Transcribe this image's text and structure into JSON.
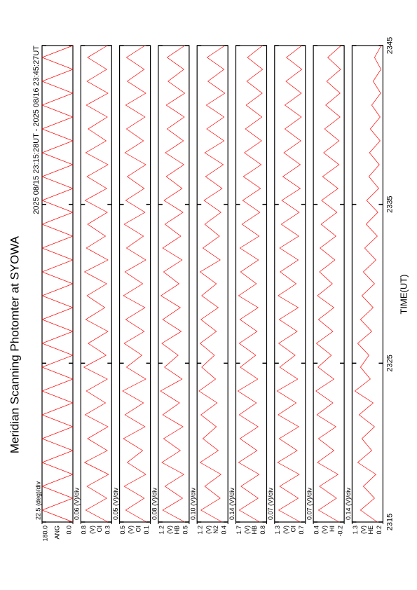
{
  "chart_data": {
    "type": "line",
    "title": "Meridian Scanning Photomter at SYOWA",
    "subtitle": "2025 08/15 23:15:28UT - 2025 08/16 23:45:27UT",
    "xlabel": "TIME(UT)",
    "xlim": [
      2315,
      2345
    ],
    "xticks": [
      2315,
      2325,
      2335,
      2345
    ],
    "x": [
      2315,
      2315.75,
      2316.5,
      2317.25,
      2318,
      2318.75,
      2319.5,
      2320.25,
      2321,
      2321.75,
      2322.5,
      2323.25,
      2324,
      2324.75,
      2325.5,
      2326.25,
      2327,
      2327.75,
      2328.5,
      2329.25,
      2330,
      2330.75,
      2331.5,
      2332.25,
      2333,
      2333.75,
      2334.5,
      2335.25,
      2336,
      2336.75,
      2337.5,
      2338.25,
      2339,
      2339.75,
      2340.5,
      2341.25,
      2342,
      2342.75,
      2343.5,
      2344.25,
      2345
    ],
    "panels": [
      {
        "scale_label": "22.5 (deg)/div",
        "channel": "ANG",
        "color": "#ff0000",
        "ylim": [
          0,
          180
        ],
        "yticks": [
          {
            "value": 180,
            "label": "180.0"
          },
          {
            "value": 0,
            "label": "0.0"
          }
        ],
        "values": [
          0,
          180,
          0,
          180,
          0,
          180,
          0,
          180,
          0,
          180,
          0,
          180,
          0,
          180,
          0,
          180,
          0,
          180,
          0,
          180,
          0,
          180,
          0,
          180,
          0,
          180,
          0,
          180,
          0,
          180,
          0,
          180,
          0,
          180,
          0,
          180,
          0,
          180,
          0,
          180,
          0
        ]
      },
      {
        "scale_label": "0.06 (V)/div",
        "unit": "(V)",
        "channel": "OI",
        "color": "#ff0000",
        "ylim": [
          0.3,
          0.8
        ],
        "yticks": [
          0.8,
          0.3
        ],
        "values": [
          0.36,
          0.72,
          0.38,
          0.7,
          0.35,
          0.74,
          0.37,
          0.69,
          0.36,
          0.73,
          0.4,
          0.71,
          0.37,
          0.75,
          0.39,
          0.68,
          0.36,
          0.72,
          0.41,
          0.7,
          0.38,
          0.74,
          0.36,
          0.71,
          0.4,
          0.69,
          0.37,
          0.73,
          0.38,
          0.7,
          0.36,
          0.72,
          0.39,
          0.68,
          0.37,
          0.71,
          0.36,
          0.7,
          0.38,
          0.69,
          0.37
        ]
      },
      {
        "scale_label": "0.05 (V)/div",
        "unit": "(V)",
        "channel": "OI",
        "color": "#ff0000",
        "ylim": [
          0.1,
          0.5
        ],
        "yticks": [
          0.5,
          0.1
        ],
        "values": [
          0.15,
          0.42,
          0.18,
          0.44,
          0.16,
          0.4,
          0.2,
          0.45,
          0.17,
          0.43,
          0.19,
          0.46,
          0.16,
          0.41,
          0.21,
          0.44,
          0.18,
          0.42,
          0.17,
          0.45,
          0.2,
          0.43,
          0.16,
          0.41,
          0.19,
          0.44,
          0.17,
          0.42,
          0.18,
          0.4,
          0.16,
          0.43,
          0.19,
          0.41,
          0.17,
          0.42,
          0.16,
          0.4,
          0.18,
          0.41,
          0.17
        ]
      },
      {
        "scale_label": "0.08 (V)/div",
        "unit": "(V)",
        "channel": "HB",
        "color": "#ff0000",
        "ylim": [
          0.5,
          1.2
        ],
        "yticks": [
          1.2,
          0.5
        ],
        "values": [
          0.6,
          1.1,
          0.65,
          1.05,
          0.62,
          1.12,
          0.7,
          1.08,
          0.64,
          1.1,
          0.72,
          1.15,
          0.66,
          1.06,
          0.75,
          1.12,
          0.68,
          1.1,
          0.7,
          1.14,
          0.73,
          1.08,
          0.66,
          1.1,
          0.69,
          1.05,
          0.64,
          1.07,
          0.66,
          1.02,
          0.62,
          1.04,
          0.63,
          1.0,
          0.61,
          1.02,
          0.6,
          0.98,
          0.62,
          1.0,
          0.6
        ]
      },
      {
        "scale_label": "0.10 (V)/div",
        "unit": "(V)",
        "channel": "N2",
        "color": "#ff0000",
        "ylim": [
          0.4,
          1.2
        ],
        "yticks": [
          1.2,
          0.4
        ],
        "values": [
          0.55,
          1.1,
          0.6,
          1.0,
          0.58,
          1.12,
          0.65,
          1.05,
          0.7,
          1.1,
          0.68,
          1.15,
          0.72,
          1.08,
          0.75,
          1.12,
          0.7,
          1.1,
          0.65,
          1.08,
          0.7,
          1.12,
          0.6,
          1.05,
          0.62,
          1.0,
          0.58,
          1.02,
          0.55,
          0.98,
          0.52,
          1.0,
          0.5,
          0.95,
          0.5,
          0.96,
          0.48,
          0.92,
          0.5,
          0.94,
          0.48
        ]
      },
      {
        "scale_label": "0.14 (V)/div",
        "unit": "(V)",
        "channel": "HB",
        "color": "#ff0000",
        "ylim": [
          0.8,
          1.7
        ],
        "yticks": [
          1.7,
          0.8
        ],
        "values": [
          1.0,
          1.6,
          1.05,
          1.55,
          1.02,
          1.62,
          1.08,
          1.58,
          1.05,
          1.6,
          1.1,
          1.64,
          1.06,
          1.57,
          1.12,
          1.6,
          1.08,
          1.58,
          1.05,
          1.62,
          1.1,
          1.56,
          1.04,
          1.58,
          1.02,
          1.52,
          1.0,
          1.5,
          0.98,
          1.48,
          0.96,
          1.45,
          0.95,
          1.42,
          0.94,
          1.4,
          0.93,
          1.38,
          0.92,
          1.36,
          0.92
        ]
      },
      {
        "scale_label": "0.07 (V)/div",
        "unit": "(V)",
        "channel": "OI",
        "color": "#ff0000",
        "ylim": [
          0.7,
          1.3
        ],
        "yticks": [
          1.3,
          0.7
        ],
        "values": [
          0.8,
          1.22,
          0.84,
          1.2,
          0.82,
          1.24,
          0.86,
          1.21,
          0.83,
          1.23,
          0.88,
          1.25,
          0.85,
          1.2,
          0.9,
          1.22,
          0.86,
          1.21,
          0.84,
          1.23,
          0.88,
          1.19,
          0.84,
          1.2,
          0.83,
          1.17,
          0.82,
          1.16,
          0.8,
          1.14,
          0.8,
          1.12,
          0.79,
          1.1,
          0.78,
          1.1,
          0.78,
          1.08,
          0.77,
          1.07,
          0.77
        ]
      },
      {
        "scale_label": "0.07 (V)/div",
        "unit": "(V)",
        "channel": "HI",
        "color": "#ff0000",
        "ylim": [
          -0.2,
          0.4
        ],
        "yticks": [
          0.4,
          -0.2
        ],
        "values": [
          -0.1,
          0.3,
          -0.05,
          0.28,
          -0.08,
          0.32,
          0.0,
          0.3,
          -0.04,
          0.33,
          0.02,
          0.35,
          0.0,
          0.31,
          0.05,
          0.34,
          0.02,
          0.3,
          0.0,
          0.32,
          0.03,
          0.28,
          -0.02,
          0.27,
          -0.04,
          0.25,
          -0.06,
          0.24,
          -0.08,
          0.22,
          -0.1,
          0.2,
          -0.1,
          0.18,
          -0.12,
          0.16,
          -0.12,
          0.14,
          -0.13,
          0.12,
          -0.14
        ]
      },
      {
        "scale_label": "0.14 (V)/div",
        "unit": "(V)",
        "channel": "HE",
        "color": "#ff0000",
        "ylim": [
          0.2,
          1.3
        ],
        "yticks": [
          1.3,
          0.2
        ],
        "values": [
          0.4,
          1.0,
          0.5,
          0.9,
          0.45,
          1.1,
          0.6,
          0.95,
          0.5,
          1.05,
          0.55,
          1.2,
          0.65,
          1.0,
          0.7,
          1.1,
          0.6,
          1.0,
          0.55,
          0.95,
          0.5,
          0.9,
          0.45,
          0.85,
          0.4,
          0.8,
          0.38,
          0.78,
          0.35,
          0.7,
          0.33,
          0.68,
          0.3,
          0.65,
          0.3,
          0.6,
          0.28,
          0.55,
          0.27,
          0.5,
          0.26
        ]
      }
    ]
  }
}
